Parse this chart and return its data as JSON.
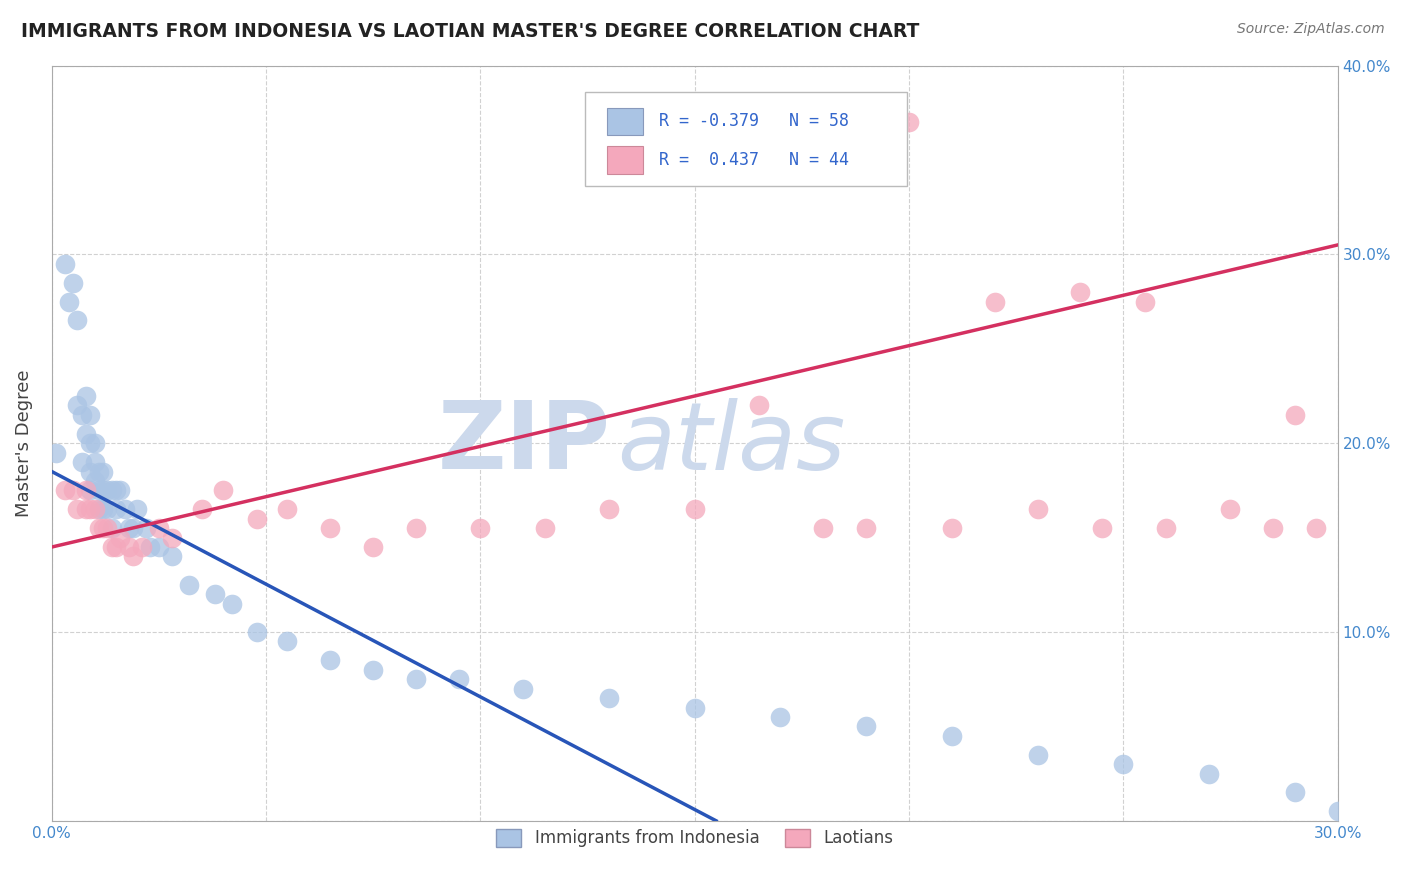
{
  "title": "IMMIGRANTS FROM INDONESIA VS LAOTIAN MASTER'S DEGREE CORRELATION CHART",
  "source": "Source: ZipAtlas.com",
  "ylabel": "Master's Degree",
  "xlim": [
    0.0,
    0.3
  ],
  "ylim": [
    0.0,
    0.4
  ],
  "xticks": [
    0.0,
    0.05,
    0.1,
    0.15,
    0.2,
    0.25,
    0.3
  ],
  "yticks": [
    0.0,
    0.1,
    0.2,
    0.3,
    0.4
  ],
  "grid_color": "#cccccc",
  "background_color": "#ffffff",
  "watermark_color": "#ccd9ec",
  "legend_R1": "-0.379",
  "legend_N1": "58",
  "legend_R2": "0.437",
  "legend_N2": "44",
  "legend_color1": "#aac4e4",
  "legend_color2": "#f4a8bc",
  "series1_color": "#aac4e4",
  "series2_color": "#f4a8bc",
  "line1_color": "#2855b8",
  "line2_color": "#d43060",
  "series1_x": [
    0.001,
    0.003,
    0.004,
    0.005,
    0.006,
    0.006,
    0.007,
    0.007,
    0.008,
    0.008,
    0.009,
    0.009,
    0.009,
    0.009,
    0.01,
    0.01,
    0.01,
    0.011,
    0.011,
    0.011,
    0.012,
    0.012,
    0.012,
    0.013,
    0.013,
    0.014,
    0.014,
    0.015,
    0.015,
    0.016,
    0.017,
    0.018,
    0.019,
    0.02,
    0.022,
    0.023,
    0.025,
    0.028,
    0.032,
    0.038,
    0.042,
    0.048,
    0.055,
    0.065,
    0.075,
    0.085,
    0.095,
    0.11,
    0.13,
    0.15,
    0.17,
    0.19,
    0.21,
    0.23,
    0.25,
    0.27,
    0.29,
    0.3
  ],
  "series1_y": [
    0.195,
    0.295,
    0.275,
    0.285,
    0.265,
    0.22,
    0.215,
    0.19,
    0.225,
    0.205,
    0.215,
    0.2,
    0.185,
    0.175,
    0.2,
    0.19,
    0.18,
    0.185,
    0.175,
    0.165,
    0.185,
    0.175,
    0.165,
    0.175,
    0.165,
    0.175,
    0.155,
    0.175,
    0.165,
    0.175,
    0.165,
    0.155,
    0.155,
    0.165,
    0.155,
    0.145,
    0.145,
    0.14,
    0.125,
    0.12,
    0.115,
    0.1,
    0.095,
    0.085,
    0.08,
    0.075,
    0.075,
    0.07,
    0.065,
    0.06,
    0.055,
    0.05,
    0.045,
    0.035,
    0.03,
    0.025,
    0.015,
    0.005
  ],
  "series2_x": [
    0.003,
    0.005,
    0.006,
    0.008,
    0.008,
    0.009,
    0.01,
    0.011,
    0.012,
    0.013,
    0.014,
    0.015,
    0.016,
    0.018,
    0.019,
    0.021,
    0.025,
    0.028,
    0.035,
    0.04,
    0.048,
    0.055,
    0.065,
    0.075,
    0.085,
    0.1,
    0.115,
    0.13,
    0.15,
    0.165,
    0.18,
    0.19,
    0.21,
    0.23,
    0.245,
    0.26,
    0.275,
    0.285,
    0.29,
    0.295,
    0.2,
    0.22,
    0.24,
    0.255
  ],
  "series2_y": [
    0.175,
    0.175,
    0.165,
    0.175,
    0.165,
    0.165,
    0.165,
    0.155,
    0.155,
    0.155,
    0.145,
    0.145,
    0.15,
    0.145,
    0.14,
    0.145,
    0.155,
    0.15,
    0.165,
    0.175,
    0.16,
    0.165,
    0.155,
    0.145,
    0.155,
    0.155,
    0.155,
    0.165,
    0.165,
    0.22,
    0.155,
    0.155,
    0.155,
    0.165,
    0.155,
    0.155,
    0.165,
    0.155,
    0.215,
    0.155,
    0.37,
    0.275,
    0.28,
    0.275
  ],
  "line1_x": [
    0.0,
    0.155
  ],
  "line1_y": [
    0.185,
    0.0
  ],
  "line2_x": [
    0.0,
    0.3
  ],
  "line2_y": [
    0.145,
    0.305
  ]
}
